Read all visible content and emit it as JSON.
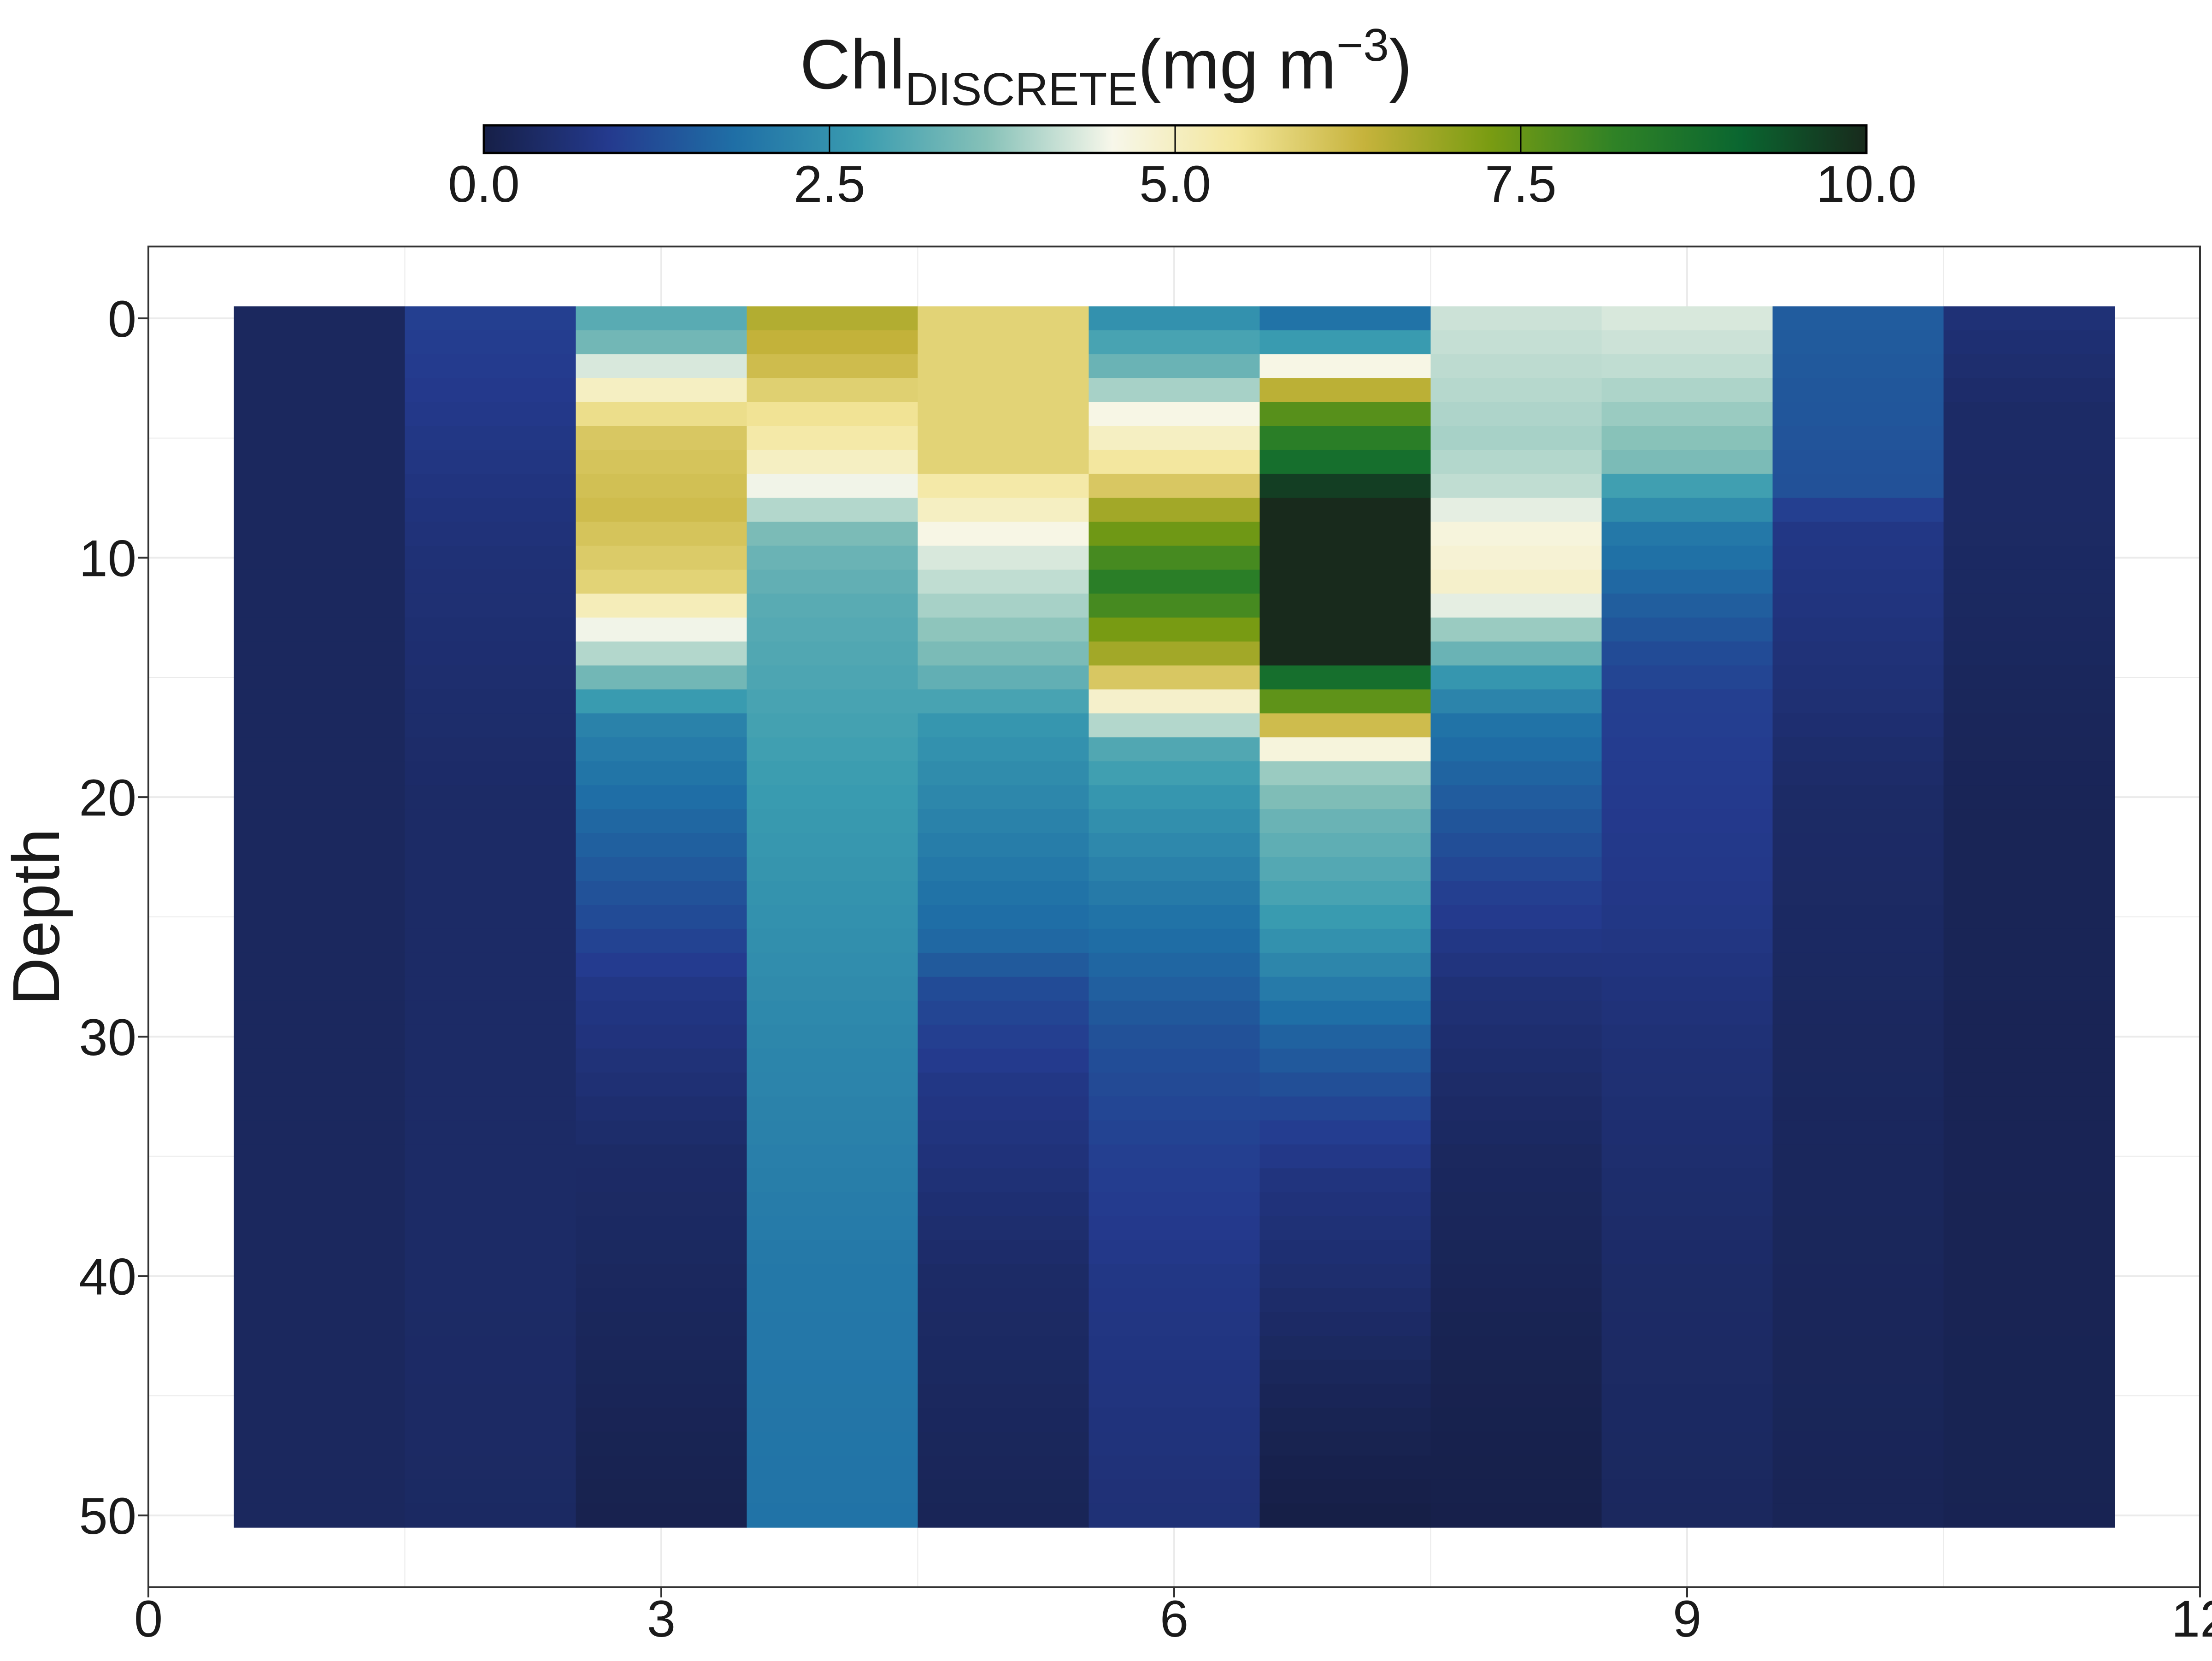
{
  "chart_data": {
    "type": "heatmap",
    "title_main": "Chl",
    "title_sub": "DISCRETE",
    "title_unit_prefix": "(mg m",
    "title_unit_sup": "−3",
    "title_unit_suffix": ")",
    "ylabel": "Depth",
    "xlabel": "",
    "xlim": [
      0,
      12
    ],
    "ylim": [
      53,
      -3
    ],
    "y_reversed": true,
    "x_ticks": [
      "0",
      "3",
      "6",
      "9",
      "12"
    ],
    "y_ticks": [
      "0",
      "10",
      "20",
      "30",
      "40",
      "50"
    ],
    "colorbar": {
      "min": 0,
      "max": 10,
      "ticks": [
        "0.0",
        "2.5",
        "5.0",
        "7.5",
        "10.0"
      ],
      "placement": "top",
      "stops": [
        "#161f47",
        "#243a8e",
        "#1f6fa6",
        "#3a9cb0",
        "#86c1b8",
        "#f7f7ea",
        "#f3e69a",
        "#c6b33c",
        "#7a9c12",
        "#2f8226",
        "#0a6630",
        "#182a1c"
      ]
    },
    "grid": true,
    "cell_height": 1,
    "columns": [
      {
        "x": 1,
        "depth_top": 0,
        "depth_bottom": 50,
        "profile": [
          [
            0,
            0.3
          ],
          [
            50,
            0.3
          ]
        ]
      },
      {
        "x": 2,
        "depth_top": 0,
        "depth_bottom": 50,
        "profile": [
          [
            0,
            1.0
          ],
          [
            5,
            0.8
          ],
          [
            10,
            0.6
          ],
          [
            20,
            0.4
          ],
          [
            40,
            0.4
          ],
          [
            50,
            0.35
          ]
        ]
      },
      {
        "x": 3,
        "depth_top": 0,
        "depth_bottom": 50,
        "profile": [
          [
            0,
            3.1
          ],
          [
            1,
            3.4
          ],
          [
            2,
            4.3
          ],
          [
            3,
            5.0
          ],
          [
            4,
            5.6
          ],
          [
            5,
            6.0
          ],
          [
            8,
            6.2
          ],
          [
            11,
            5.8
          ],
          [
            12,
            5.1
          ],
          [
            13,
            4.5
          ],
          [
            14,
            4.0
          ],
          [
            15,
            3.4
          ],
          [
            16,
            2.7
          ],
          [
            17,
            2.2
          ],
          [
            20,
            1.8
          ],
          [
            25,
            1.2
          ],
          [
            28,
            0.8
          ],
          [
            35,
            0.4
          ],
          [
            45,
            0.2
          ],
          [
            50,
            0.1
          ]
        ]
      },
      {
        "x": 4,
        "depth_top": 0,
        "depth_bottom": 50,
        "profile": [
          [
            0,
            6.6
          ],
          [
            2,
            6.2
          ],
          [
            4,
            5.5
          ],
          [
            5,
            5.3
          ],
          [
            6,
            5.0
          ],
          [
            7,
            4.5
          ],
          [
            8,
            4.0
          ],
          [
            9,
            3.5
          ],
          [
            10,
            3.3
          ],
          [
            12,
            3.1
          ],
          [
            20,
            2.7
          ],
          [
            30,
            2.3
          ],
          [
            40,
            2.0
          ],
          [
            50,
            1.9
          ]
        ]
      },
      {
        "x": 5,
        "depth_top": 0,
        "depth_bottom": 50,
        "profile": [
          [
            0,
            5.8
          ],
          [
            6,
            5.8
          ],
          [
            7,
            5.3
          ],
          [
            8,
            5.0
          ],
          [
            9,
            4.6
          ],
          [
            10,
            4.3
          ],
          [
            12,
            3.9
          ],
          [
            14,
            3.5
          ],
          [
            15,
            3.2
          ],
          [
            17,
            2.6
          ],
          [
            22,
            2.1
          ],
          [
            26,
            1.7
          ],
          [
            28,
            1.2
          ],
          [
            32,
            0.8
          ],
          [
            40,
            0.4
          ],
          [
            50,
            0.2
          ]
        ]
      },
      {
        "x": 6,
        "depth_top": 0,
        "depth_bottom": 50,
        "profile": [
          [
            0,
            2.5
          ],
          [
            1,
            2.9
          ],
          [
            2,
            3.3
          ],
          [
            3,
            3.9
          ],
          [
            4,
            4.6
          ],
          [
            5,
            5.0
          ],
          [
            6,
            5.4
          ],
          [
            7,
            6.0
          ],
          [
            8,
            6.8
          ],
          [
            9,
            7.4
          ],
          [
            10,
            7.9
          ],
          [
            11,
            8.3
          ],
          [
            12,
            7.9
          ],
          [
            13,
            7.3
          ],
          [
            14,
            6.8
          ],
          [
            15,
            6.0
          ],
          [
            16,
            4.9
          ],
          [
            17,
            4.0
          ],
          [
            18,
            3.0
          ],
          [
            20,
            2.6
          ],
          [
            25,
            1.9
          ],
          [
            30,
            1.3
          ],
          [
            35,
            1.0
          ],
          [
            40,
            0.8
          ],
          [
            50,
            0.6
          ]
        ]
      },
      {
        "x": 7,
        "depth_top": 0,
        "depth_bottom": 50,
        "profile": [
          [
            0,
            1.9
          ],
          [
            1,
            2.7
          ],
          [
            2,
            4.6
          ],
          [
            3,
            6.5
          ],
          [
            4,
            7.7
          ],
          [
            5,
            8.3
          ],
          [
            6,
            8.8
          ],
          [
            7,
            9.7
          ],
          [
            8,
            10.5
          ],
          [
            14,
            10.5
          ],
          [
            15,
            8.8
          ],
          [
            16,
            7.6
          ],
          [
            17,
            6.2
          ],
          [
            18,
            4.7
          ],
          [
            19,
            3.8
          ],
          [
            21,
            3.3
          ],
          [
            24,
            2.9
          ],
          [
            26,
            2.5
          ],
          [
            30,
            1.6
          ],
          [
            33,
            1.1
          ],
          [
            36,
            0.7
          ],
          [
            40,
            0.5
          ],
          [
            45,
            0.2
          ],
          [
            50,
            0.0
          ]
        ]
      },
      {
        "x": 8,
        "depth_top": 0,
        "depth_bottom": 50,
        "profile": [
          [
            0,
            4.2
          ],
          [
            5,
            3.9
          ],
          [
            7,
            4.1
          ],
          [
            8,
            4.4
          ],
          [
            9,
            4.7
          ],
          [
            11,
            4.9
          ],
          [
            12,
            4.4
          ],
          [
            13,
            3.8
          ],
          [
            14,
            3.3
          ],
          [
            15,
            2.6
          ],
          [
            17,
            1.9
          ],
          [
            20,
            1.5
          ],
          [
            24,
            1.0
          ],
          [
            28,
            0.6
          ],
          [
            35,
            0.3
          ],
          [
            45,
            0.1
          ],
          [
            50,
            0.05
          ]
        ]
      },
      {
        "x": 9,
        "depth_top": 0,
        "depth_bottom": 50,
        "profile": [
          [
            0,
            4.3
          ],
          [
            2,
            4.1
          ],
          [
            4,
            3.8
          ],
          [
            6,
            3.5
          ],
          [
            7,
            2.8
          ],
          [
            8,
            2.4
          ],
          [
            9,
            2.0
          ],
          [
            11,
            1.7
          ],
          [
            14,
            1.2
          ],
          [
            16,
            1.0
          ],
          [
            20,
            0.9
          ],
          [
            25,
            0.8
          ],
          [
            30,
            0.6
          ],
          [
            40,
            0.4
          ],
          [
            50,
            0.3
          ]
        ]
      },
      {
        "x": 10,
        "depth_top": 0,
        "depth_bottom": 50,
        "profile": [
          [
            0,
            1.5
          ],
          [
            7,
            1.3
          ],
          [
            8,
            1.0
          ],
          [
            9,
            0.8
          ],
          [
            15,
            0.6
          ],
          [
            20,
            0.4
          ],
          [
            30,
            0.3
          ],
          [
            50,
            0.2
          ]
        ]
      },
      {
        "x": 11,
        "depth_top": 0,
        "depth_bottom": 50,
        "profile": [
          [
            0,
            0.6
          ],
          [
            4,
            0.4
          ],
          [
            10,
            0.35
          ],
          [
            20,
            0.2
          ],
          [
            50,
            0.15
          ]
        ]
      }
    ]
  }
}
